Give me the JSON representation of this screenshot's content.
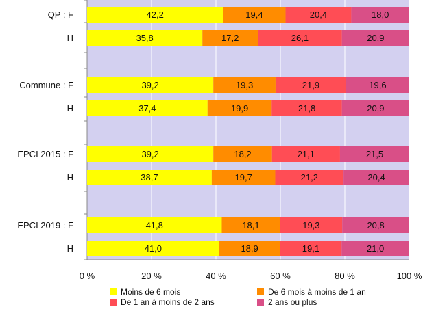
{
  "chart_data": {
    "type": "bar",
    "orientation": "horizontal",
    "stacked": true,
    "title": "",
    "xlabel": "",
    "ylabel": "",
    "xlim": [
      0,
      100
    ],
    "x_ticks": [
      "0 %",
      "20 %",
      "40 %",
      "60 %",
      "80 %",
      "100 %"
    ],
    "grid": true,
    "legend_position": "bottom",
    "categories": [
      "QP : F",
      "H",
      "Commune : F",
      "H",
      "EPCI 2015 : F",
      "H",
      "EPCI 2019 : F",
      "H"
    ],
    "value_labels": [
      [
        "42,2",
        "19,4",
        "20,4",
        "18,0"
      ],
      [
        "35,8",
        "17,2",
        "26,1",
        "20,9"
      ],
      [
        "39,2",
        "19,3",
        "21,9",
        "19,6"
      ],
      [
        "37,4",
        "19,9",
        "21,8",
        "20,9"
      ],
      [
        "39,2",
        "18,2",
        "21,1",
        "21,5"
      ],
      [
        "38,7",
        "19,7",
        "21,2",
        "20,4"
      ],
      [
        "41,8",
        "18,1",
        "19,3",
        "20,8"
      ],
      [
        "41,0",
        "18,9",
        "19,1",
        "21,0"
      ]
    ],
    "series": [
      {
        "name": "Moins de 6 mois",
        "color": "#ffff00",
        "values": [
          42.2,
          35.8,
          39.2,
          37.4,
          39.2,
          38.7,
          41.8,
          41.0
        ]
      },
      {
        "name": "De 6 mois à moins de 1 an",
        "color": "#ff8c00",
        "values": [
          19.4,
          17.2,
          19.3,
          19.9,
          18.2,
          19.7,
          18.1,
          18.9
        ]
      },
      {
        "name": "De 1 an à moins de 2 ans",
        "color": "#ff4d55",
        "values": [
          20.4,
          26.1,
          21.9,
          21.8,
          21.1,
          21.2,
          19.3,
          19.1
        ]
      },
      {
        "name": "2 ans ou plus",
        "color": "#d94f87",
        "values": [
          18.0,
          20.9,
          19.6,
          20.9,
          21.5,
          20.4,
          20.8,
          21.0
        ]
      }
    ],
    "plot_background": "#d3d0f0"
  }
}
